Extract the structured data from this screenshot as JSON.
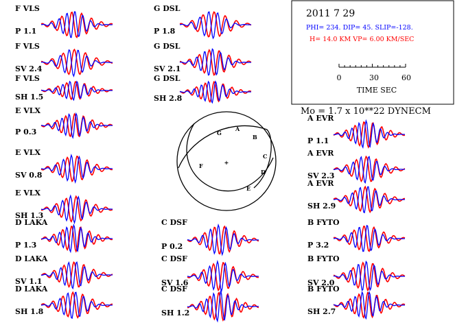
{
  "header": {
    "date": "2011  7 29",
    "params_line": "PHI= 234. DIP= 45. SLIP=-128.",
    "depth_line": "H= 14.0 KM  VP= 6.00 KM/SEC",
    "time_scale": {
      "ticks": [
        "0",
        "30",
        "60"
      ],
      "label": "TIME  SEC"
    },
    "moment": "Mo =  1.7 x 10**22 DYNECM"
  },
  "colors": {
    "observed": "#0000ff",
    "synthetic": "#ff0000",
    "params": "#0000ff",
    "depth": "#ff0000"
  },
  "panels": [
    {
      "station": "F VLS",
      "component": "P",
      "amplitude": "1.1"
    },
    {
      "station": "F VLS",
      "component": "SV",
      "amplitude": "2.4"
    },
    {
      "station": "F VLS",
      "component": "SH",
      "amplitude": "1.5"
    },
    {
      "station": "E VLX",
      "component": "P",
      "amplitude": "0.3"
    },
    {
      "station": "E VLX",
      "component": "SV",
      "amplitude": "0.8"
    },
    {
      "station": "E VLX",
      "component": "SH",
      "amplitude": "1.3"
    },
    {
      "station": "D LAKA",
      "component": "P",
      "amplitude": "1.3"
    },
    {
      "station": "D LAKA",
      "component": "SV",
      "amplitude": "1.1"
    },
    {
      "station": "D LAKA",
      "component": "SH",
      "amplitude": "1.8"
    },
    {
      "station": "G DSL",
      "component": "P",
      "amplitude": "1.8"
    },
    {
      "station": "G DSL",
      "component": "SV",
      "amplitude": "2.1"
    },
    {
      "station": "G DSL",
      "component": "SH",
      "amplitude": "2.8"
    },
    {
      "station": "C DSF",
      "component": "P",
      "amplitude": "0.2"
    },
    {
      "station": "C DSF",
      "component": "SV",
      "amplitude": "1.6"
    },
    {
      "station": "C DSF",
      "component": "SH",
      "amplitude": "1.2"
    },
    {
      "station": "A EVR",
      "component": "P",
      "amplitude": "1.1"
    },
    {
      "station": "A EVR",
      "component": "SV",
      "amplitude": "2.3"
    },
    {
      "station": "A EVR",
      "component": "SH",
      "amplitude": "2.9"
    },
    {
      "station": "B FYTO",
      "component": "P",
      "amplitude": "3.2"
    },
    {
      "station": "B FYTO",
      "component": "SV",
      "amplitude": "2.0"
    },
    {
      "station": "B FYTO",
      "component": "SH",
      "amplitude": "2.7"
    }
  ],
  "beachball": {
    "center_mark": "+",
    "stations": [
      "G",
      "A",
      "B",
      "F",
      "C",
      "D",
      "E"
    ]
  }
}
